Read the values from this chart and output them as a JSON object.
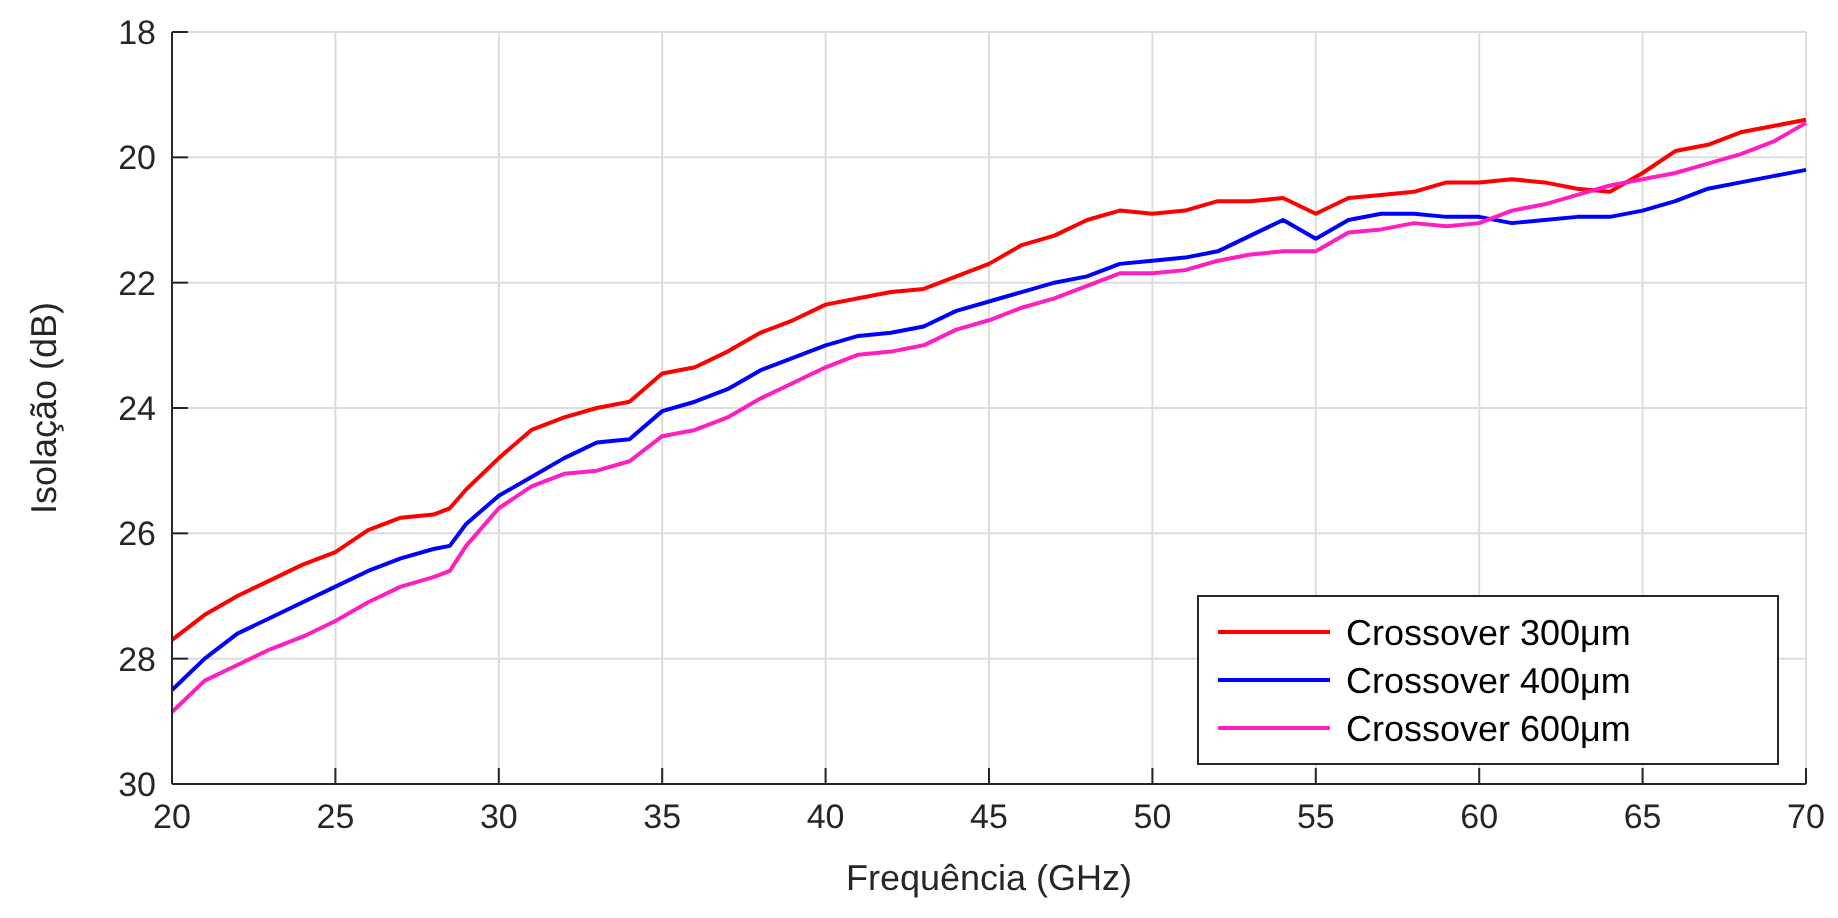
{
  "chart_data": {
    "type": "line",
    "xlabel": "Frequência (GHz)",
    "ylabel": "Isolação (dB)",
    "x": [
      20,
      21,
      22,
      23,
      24,
      25,
      26,
      27,
      28,
      28.5,
      29,
      30,
      31,
      32,
      33,
      34,
      35,
      36,
      37,
      38,
      39,
      40,
      41,
      42,
      43,
      44,
      45,
      46,
      47,
      48,
      49,
      50,
      51,
      52,
      53,
      54,
      55,
      56,
      57,
      58,
      59,
      60,
      61,
      62,
      63,
      64,
      65,
      66,
      67,
      68,
      69,
      70
    ],
    "series": [
      {
        "name": "Crossover 300μm",
        "color": "#ff0000",
        "values": [
          27.7,
          27.3,
          27.0,
          26.75,
          26.5,
          26.3,
          25.95,
          25.75,
          25.7,
          25.6,
          25.3,
          24.8,
          24.35,
          24.15,
          24.0,
          23.9,
          23.45,
          23.35,
          23.1,
          22.8,
          22.6,
          22.35,
          22.25,
          22.15,
          22.1,
          21.9,
          21.7,
          21.4,
          21.25,
          21.0,
          20.85,
          20.9,
          20.85,
          20.7,
          20.7,
          20.65,
          20.9,
          20.65,
          20.6,
          20.55,
          20.4,
          20.4,
          20.35,
          20.4,
          20.5,
          20.55,
          20.25,
          19.9,
          19.8,
          19.6,
          19.5,
          19.4
        ]
      },
      {
        "name": "Crossover 400μm",
        "color": "#0000ff",
        "values": [
          28.5,
          28.0,
          27.6,
          27.35,
          27.1,
          26.85,
          26.6,
          26.4,
          26.25,
          26.2,
          25.85,
          25.4,
          25.1,
          24.8,
          24.55,
          24.5,
          24.05,
          23.9,
          23.7,
          23.4,
          23.2,
          23.0,
          22.85,
          22.8,
          22.7,
          22.45,
          22.3,
          22.15,
          22.0,
          21.9,
          21.7,
          21.65,
          21.6,
          21.5,
          21.25,
          21.0,
          21.3,
          21.0,
          20.9,
          20.9,
          20.95,
          20.95,
          21.05,
          21.0,
          20.95,
          20.95,
          20.85,
          20.7,
          20.5,
          20.4,
          20.3,
          20.2
        ]
      },
      {
        "name": "Crossover 600μm",
        "color": "#ff1fc0",
        "values": [
          28.85,
          28.35,
          28.1,
          27.85,
          27.65,
          27.4,
          27.1,
          26.85,
          26.7,
          26.6,
          26.2,
          25.6,
          25.25,
          25.05,
          25.0,
          24.85,
          24.45,
          24.35,
          24.15,
          23.85,
          23.6,
          23.35,
          23.15,
          23.1,
          23.0,
          22.75,
          22.6,
          22.4,
          22.25,
          22.05,
          21.85,
          21.85,
          21.8,
          21.65,
          21.55,
          21.5,
          21.5,
          21.2,
          21.15,
          21.05,
          21.1,
          21.05,
          20.85,
          20.75,
          20.6,
          20.45,
          20.35,
          20.25,
          20.1,
          19.95,
          19.75,
          19.45
        ]
      }
    ],
    "xlim": [
      20,
      70
    ],
    "xticks": [
      20,
      25,
      30,
      35,
      40,
      45,
      50,
      55,
      60,
      65,
      70
    ],
    "ylim": [
      30,
      18
    ],
    "yticks": [
      18,
      20,
      22,
      24,
      26,
      28,
      30
    ],
    "grid": true,
    "legend": "bottom right",
    "marker": "none",
    "line_style": "solid"
  }
}
